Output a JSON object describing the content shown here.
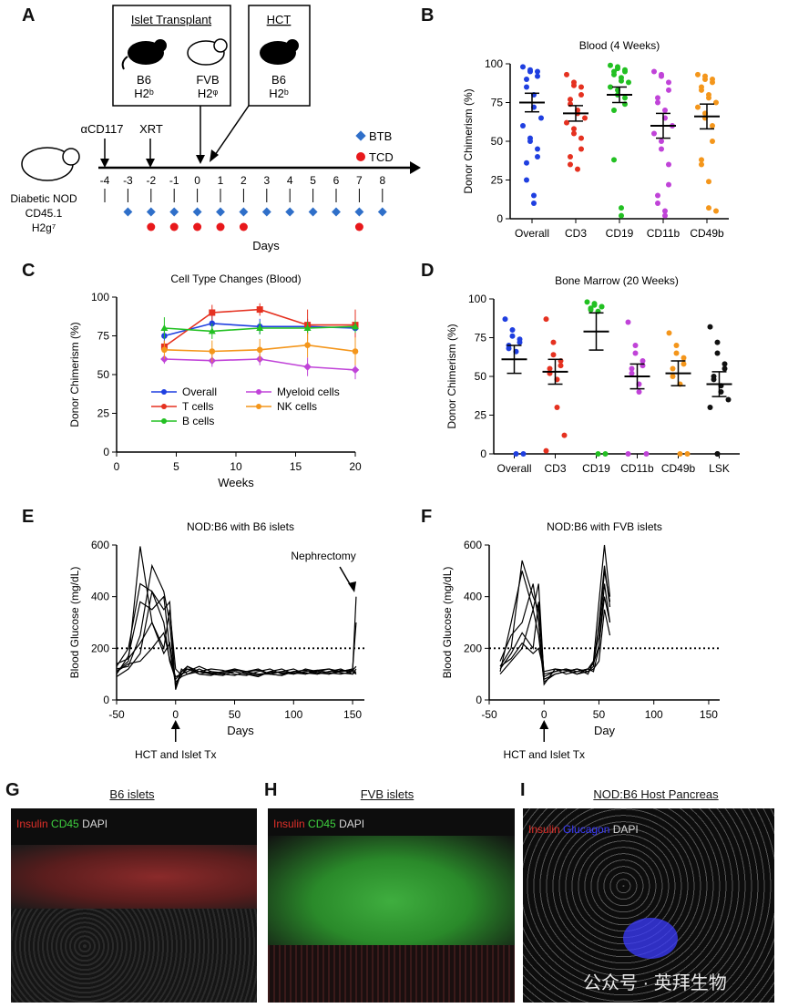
{
  "panel_labels": {
    "A": "A",
    "B": "B",
    "C": "C",
    "D": "D",
    "E": "E",
    "F": "F",
    "G": "G",
    "H": "H",
    "I": "I"
  },
  "schematic": {
    "islet_box_title": "Islet Transplant",
    "hct_box_title": "HCT",
    "mouse_b6": "B6",
    "mhc_b6": "H2ᵇ",
    "mouse_fvb": "FVB",
    "mhc_fvb": "H2ᵠ",
    "hct_mouse": "B6",
    "hct_mhc": "H2ᵇ",
    "host_line1": "Diabetic NOD",
    "host_line2": "CD45.1",
    "host_line3": "H2g⁷",
    "anti_cd117": "αCD117",
    "xrt": "XRT",
    "legend_btb": "BTB",
    "legend_tcd": "TCD",
    "axis_label": "Days",
    "days": [
      "-4",
      "-3",
      "-2",
      "-1",
      "0",
      "1",
      "2",
      "3",
      "4",
      "5",
      "6",
      "7",
      "8"
    ],
    "btb_days": [
      -3,
      -2,
      -1,
      0,
      1,
      2,
      3,
      4,
      5,
      6,
      7,
      8
    ],
    "tcd_days": [
      -2,
      -1,
      0,
      1,
      2,
      7
    ],
    "colors": {
      "btb": "#2f6fc9",
      "tcd": "#e8181b"
    }
  },
  "chart_data": [
    {
      "id": "B",
      "type": "scatter",
      "title": "Blood (4 Weeks)",
      "ylabel": "Donor Chimerism (%)",
      "ylim": [
        0,
        100
      ],
      "yticks": [
        "0",
        "25",
        "50",
        "75",
        "100"
      ],
      "categories": [
        "Overall",
        "CD3",
        "CD19",
        "CD11b",
        "CD49b"
      ],
      "colors": [
        "#1f3fe0",
        "#e53120",
        "#22c022",
        "#c043d8",
        "#f4961b"
      ],
      "points": [
        [
          98,
          96,
          95,
          95,
          92,
          90,
          85,
          80,
          72,
          65,
          60,
          52,
          50,
          45,
          40,
          36,
          25,
          15,
          10
        ],
        [
          93,
          88,
          86,
          85,
          80,
          77,
          74,
          70,
          68,
          65,
          62,
          58,
          55,
          52,
          45,
          40,
          35,
          32
        ],
        [
          99,
          98,
          97,
          96,
          95,
          95,
          93,
          91,
          89,
          88,
          85,
          83,
          80,
          78,
          74,
          70,
          38,
          7,
          2
        ],
        [
          95,
          93,
          92,
          88,
          83,
          78,
          75,
          70,
          65,
          60,
          55,
          50,
          45,
          35,
          22,
          15,
          10,
          5,
          2
        ],
        [
          93,
          92,
          90,
          90,
          88,
          85,
          83,
          80,
          78,
          75,
          72,
          68,
          65,
          60,
          50,
          38,
          35,
          24,
          7,
          5
        ]
      ],
      "mean": [
        75,
        68,
        80,
        60,
        66
      ],
      "err": [
        6,
        5,
        5,
        8,
        8
      ]
    },
    {
      "id": "C",
      "type": "line",
      "title": "Cell Type Changes (Blood)",
      "xlabel": "Weeks",
      "ylabel": "Donor Chimerism (%)",
      "xlim": [
        0,
        20
      ],
      "ylim": [
        0,
        100
      ],
      "xticks": [
        "0",
        "5",
        "10",
        "15",
        "20"
      ],
      "yticks": [
        "0",
        "25",
        "50",
        "75",
        "100"
      ],
      "x": [
        4,
        8,
        12,
        16,
        20
      ],
      "series": [
        {
          "name": "Overall",
          "color": "#1f3fe0",
          "marker": "circle",
          "values": [
            75,
            83,
            81,
            81,
            80
          ],
          "err": [
            5,
            5,
            5,
            5,
            5
          ]
        },
        {
          "name": "T cells",
          "color": "#e53120",
          "marker": "square",
          "values": [
            68,
            90,
            92,
            82,
            82
          ],
          "err": [
            4,
            5,
            4,
            10,
            10
          ]
        },
        {
          "name": "B cells",
          "color": "#22c022",
          "marker": "triangle",
          "values": [
            80,
            78,
            80,
            80,
            81
          ],
          "err": [
            7,
            5,
            4,
            4,
            4
          ]
        },
        {
          "name": "Myeloid cells",
          "color": "#c043d8",
          "marker": "diamond",
          "values": [
            60,
            59,
            60,
            55,
            53
          ],
          "err": [
            3,
            4,
            4,
            6,
            6
          ]
        },
        {
          "name": "NK cells",
          "color": "#f4961b",
          "marker": "circle",
          "values": [
            66,
            65,
            66,
            69,
            65
          ],
          "err": [
            6,
            7,
            7,
            8,
            9
          ]
        }
      ],
      "legend_order": [
        "Overall",
        "T cells",
        "B cells",
        "Myeloid cells",
        "NK cells"
      ]
    },
    {
      "id": "D",
      "type": "scatter",
      "title": "Bone Marrow (20 Weeks)",
      "ylabel": "Donor Chimerism (%)",
      "ylim": [
        0,
        100
      ],
      "yticks": [
        "0",
        "25",
        "50",
        "75",
        "100"
      ],
      "categories": [
        "Overall",
        "CD3",
        "CD19",
        "CD11b",
        "CD49b",
        "LSK"
      ],
      "colors": [
        "#1f3fe0",
        "#e53120",
        "#22c022",
        "#c043d8",
        "#f4961b",
        "#111111"
      ],
      "points": [
        [
          87,
          80,
          76,
          74,
          72,
          70,
          68,
          66,
          0,
          0
        ],
        [
          87,
          72,
          64,
          60,
          57,
          55,
          52,
          48,
          30,
          12,
          2
        ],
        [
          98,
          97,
          96,
          95,
          95,
          94,
          93,
          92,
          0,
          0
        ],
        [
          85,
          70,
          65,
          60,
          57,
          55,
          52,
          45,
          40,
          0,
          0
        ],
        [
          78,
          70,
          65,
          62,
          58,
          55,
          50,
          45,
          0,
          0
        ],
        [
          82,
          72,
          65,
          58,
          55,
          50,
          48,
          44,
          40,
          35,
          30,
          0,
          0
        ]
      ],
      "mean": [
        61,
        53,
        79,
        50,
        52,
        45
      ],
      "err": [
        9,
        8,
        12,
        8,
        8,
        8
      ]
    },
    {
      "id": "E",
      "type": "line",
      "title": "NOD:B6 with B6 islets",
      "xlabel": "Days",
      "ylabel": "Blood Glucose (mg/dL)",
      "xlim": [
        -50,
        160
      ],
      "ylim": [
        0,
        600
      ],
      "xticks": [
        "-50",
        "0",
        "50",
        "100",
        "150"
      ],
      "yticks": [
        "0",
        "200",
        "400",
        "600"
      ],
      "threshold": 200,
      "annotations": [
        "Nephrectomy",
        "HCT and Islet Tx"
      ],
      "series_x": [
        -50,
        -40,
        -30,
        -20,
        -10,
        -5,
        0,
        5,
        10,
        20,
        30,
        40,
        50,
        60,
        70,
        80,
        90,
        100,
        110,
        120,
        130,
        140,
        150,
        153
      ],
      "series": [
        [
          110,
          150,
          595,
          300,
          200,
          350,
          120,
          95,
          130,
          110,
          100,
          95,
          110,
          100,
          90,
          110,
          105,
          100,
          120,
          110,
          100,
          115,
          110,
          400
        ],
        [
          130,
          200,
          450,
          420,
          300,
          150,
          80,
          110,
          120,
          100,
          95,
          110,
          120,
          105,
          100,
          100,
          95,
          110,
          115,
          105,
          100,
          110,
          120,
          300
        ],
        [
          100,
          170,
          380,
          350,
          400,
          200,
          60,
          100,
          110,
          130,
          110,
          100,
          95,
          110,
          120,
          100,
          110,
          105,
          100,
          115,
          120,
          110,
          115,
          130
        ],
        [
          120,
          130,
          250,
          520,
          420,
          300,
          50,
          120,
          100,
          110,
          120,
          115,
          100,
          95,
          110,
          120,
          100,
          110,
          105,
          100,
          110,
          120,
          100,
          120
        ],
        [
          90,
          120,
          180,
          420,
          350,
          380,
          40,
          110,
          130,
          100,
          110,
          105,
          110,
          100,
          95,
          110,
          120,
          100,
          110,
          115,
          105,
          100,
          110,
          100
        ],
        [
          140,
          160,
          220,
          300,
          180,
          220,
          70,
          90,
          100,
          120,
          100,
          110,
          115,
          110,
          100,
          105,
          110,
          120,
          100,
          110,
          120,
          105,
          100,
          110
        ],
        [
          110,
          140,
          150,
          200,
          260,
          160,
          90,
          100,
          120,
          110,
          105,
          100,
          120,
          110,
          115,
          100,
          95,
          110,
          115,
          100,
          110,
          110,
          120,
          100
        ]
      ]
    },
    {
      "id": "F",
      "type": "line",
      "title": "NOD:B6 with FVB islets",
      "xlabel": "Day",
      "ylabel": "Blood Glucose (mg/dL)",
      "xlim": [
        -50,
        160
      ],
      "ylim": [
        0,
        600
      ],
      "xticks": [
        "-50",
        "0",
        "50",
        "100",
        "150"
      ],
      "yticks": [
        "0",
        "200",
        "400",
        "600"
      ],
      "threshold": 200,
      "annotations": [
        "HCT and Islet Tx"
      ],
      "series_x": [
        -40,
        -30,
        -20,
        -10,
        -5,
        0,
        10,
        20,
        30,
        40,
        45,
        50,
        55,
        60
      ],
      "series": [
        [
          130,
          200,
          540,
          400,
          350,
          100,
          110,
          120,
          110,
          120,
          150,
          380,
          600,
          400
        ],
        [
          110,
          300,
          500,
          350,
          450,
          80,
          100,
          110,
          120,
          110,
          130,
          300,
          520,
          360
        ],
        [
          150,
          250,
          300,
          450,
          300,
          60,
          120,
          100,
          110,
          120,
          110,
          200,
          450,
          300
        ],
        [
          120,
          180,
          260,
          200,
          380,
          90,
          110,
          120,
          100,
          110,
          120,
          150,
          350,
          250
        ],
        [
          100,
          150,
          200,
          350,
          250,
          70,
          100,
          110,
          120,
          100,
          150,
          250,
          500,
          380
        ],
        [
          130,
          160,
          220,
          180,
          200,
          110,
          120,
          115,
          100,
          120,
          140,
          210,
          400,
          300
        ]
      ]
    }
  ],
  "micro": {
    "G": {
      "title": "B6 islets",
      "legend": [
        "Insulin",
        "CD45",
        "DAPI"
      ]
    },
    "H": {
      "title": "FVB islets",
      "legend": [
        "Insulin",
        "CD45",
        "DAPI"
      ]
    },
    "I": {
      "title": "NOD:B6 Host Pancreas",
      "legend": [
        "Insulin",
        "Glucagon",
        "DAPI"
      ]
    },
    "legend_colors": {
      "Insulin": "#e0302a",
      "CD45": "#3fd13f",
      "DAPI": "#d9d9d9",
      "Glucagon": "#3b3bff"
    }
  },
  "watermark": "公众号 · 英拜生物"
}
